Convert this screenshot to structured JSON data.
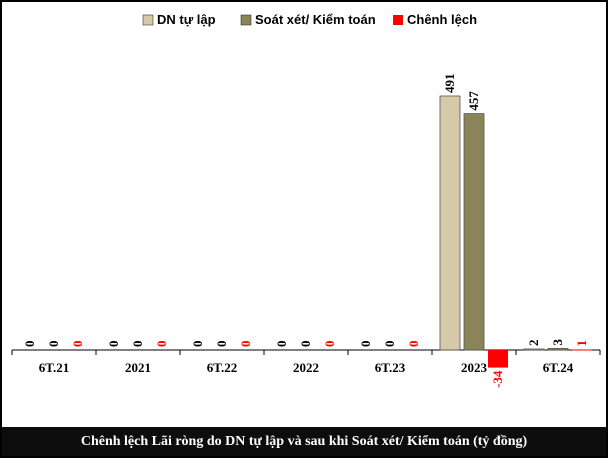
{
  "chart_data": {
    "type": "bar",
    "categories": [
      "6T.21",
      "2021",
      "6T.22",
      "2022",
      "6T.23",
      "2023",
      "6T.24"
    ],
    "series": [
      {
        "name": "DN tự lập",
        "values": [
          0,
          0,
          0,
          0,
          0,
          491,
          2
        ],
        "color": "#d5c9a8",
        "label_color": "#000000"
      },
      {
        "name": "Soát xét/ Kiểm toán",
        "values": [
          0,
          0,
          0,
          0,
          0,
          457,
          3
        ],
        "color": "#8a8457",
        "label_color": "#000000"
      },
      {
        "name": "Chênh lệch",
        "values": [
          0,
          0,
          0,
          0,
          0,
          -34,
          1
        ],
        "color": "#ff0000",
        "label_color": "#ff0000"
      }
    ],
    "title": "",
    "xlabel": "",
    "ylabel": "",
    "ylim": [
      -34,
      530
    ],
    "grid": false,
    "legend_position": "top"
  },
  "caption": "Chênh lệch Lãi ròng do DN tự lập và sau khi Soát xét/ Kiểm toán (tỷ đồng)"
}
